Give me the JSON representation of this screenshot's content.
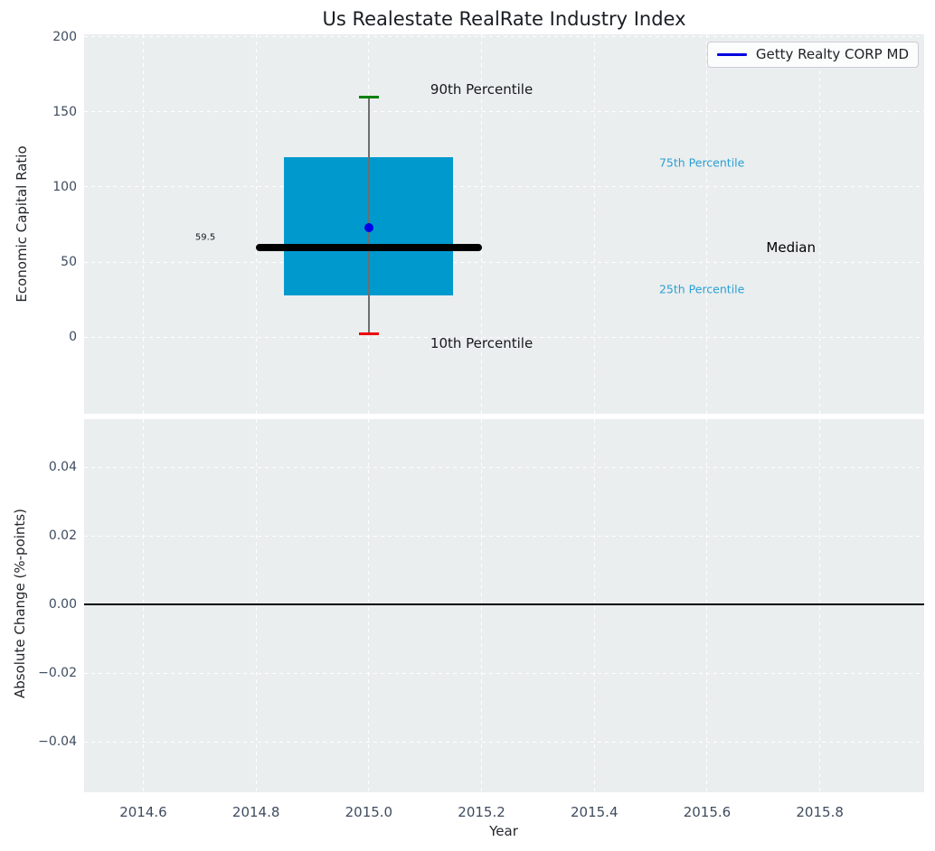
{
  "figure": {
    "title": "Us Realestate RealRate Industry Index"
  },
  "chart_data": [
    {
      "type": "box",
      "title": "Us Realestate RealRate Industry Index",
      "ylabel": "Economic Capital Ratio",
      "grid": true,
      "legend": {
        "label": "Getty Realty CORP MD",
        "line_color": "#0000e0",
        "position": "upper right"
      },
      "xlim": [
        2014.495,
        2015.985
      ],
      "ylim": [
        -51.2,
        201.8
      ],
      "yticks": [
        {
          "v": 0,
          "label": "0"
        },
        {
          "v": 50,
          "label": "50"
        },
        {
          "v": 100,
          "label": "100"
        },
        {
          "v": 150,
          "label": "150"
        },
        {
          "v": 200,
          "label": "200"
        }
      ],
      "xticks": [
        {
          "v": 2014.6,
          "label": "2014.6"
        },
        {
          "v": 2014.8,
          "label": "2014.8"
        },
        {
          "v": 2015.0,
          "label": "2015.0"
        },
        {
          "v": 2015.2,
          "label": "2015.2"
        },
        {
          "v": 2015.4,
          "label": "2015.4"
        },
        {
          "v": 2015.6,
          "label": "2015.6"
        },
        {
          "v": 2015.8,
          "label": "2015.8"
        }
      ],
      "xtick_labels_visible": false,
      "box": {
        "x": 2015.0,
        "p10": 2,
        "p25": 28,
        "median": 59.5,
        "p75": 120,
        "p90": 160,
        "company_value": 73,
        "box_x_range": [
          2014.85,
          2015.15
        ],
        "median_x_range": [
          2014.8,
          2015.2
        ],
        "colors": {
          "box": "#0099cd",
          "median": "#000000",
          "whisker": "#6e6e6e",
          "p90_cap": "#008000",
          "p10_cap": "#ee0000",
          "company_dot": "#0000e6"
        }
      },
      "annotations": [
        {
          "text": "90th Percentile",
          "x": 2015.2,
          "y": 165,
          "color": "#17181c",
          "size": 15,
          "align": "center"
        },
        {
          "text": "10th Percentile",
          "x": 2015.2,
          "y": -4.5,
          "color": "#17181c",
          "size": 15,
          "align": "center"
        },
        {
          "text": "75th Percentile",
          "x": 2015.515,
          "y": 116,
          "color": "#2aa0d2",
          "size": 12.5,
          "align": "left"
        },
        {
          "text": "25th Percentile",
          "x": 2015.515,
          "y": 32,
          "color": "#2aa0d2",
          "size": 12.5,
          "align": "left"
        },
        {
          "text": "Median",
          "x": 2015.705,
          "y": 59.5,
          "color": "#000000",
          "size": 15,
          "align": "left"
        },
        {
          "text": "59.5",
          "x": 2014.71,
          "y": 66,
          "color": "#17181c",
          "size": 10,
          "align": "center"
        }
      ]
    },
    {
      "type": "line",
      "series": [],
      "ylabel": "Absolute Change (%-points)",
      "xlabel": "Year",
      "grid": true,
      "zero_line": true,
      "xlim": [
        2014.495,
        2015.985
      ],
      "ylim": [
        -0.0546,
        0.054
      ],
      "yticks": [
        {
          "v": 0.04,
          "label": "0.04"
        },
        {
          "v": 0.02,
          "label": "0.02"
        },
        {
          "v": 0.0,
          "label": "0.00"
        },
        {
          "v": -0.02,
          "label": "−0.02"
        },
        {
          "v": -0.04,
          "label": "−0.04"
        }
      ],
      "xticks": [
        {
          "v": 2014.6,
          "label": "2014.6"
        },
        {
          "v": 2014.8,
          "label": "2014.8"
        },
        {
          "v": 2015.0,
          "label": "2015.0"
        },
        {
          "v": 2015.2,
          "label": "2015.2"
        },
        {
          "v": 2015.4,
          "label": "2015.4"
        },
        {
          "v": 2015.6,
          "label": "2015.6"
        },
        {
          "v": 2015.8,
          "label": "2015.8"
        }
      ],
      "xtick_labels_visible": true
    }
  ]
}
